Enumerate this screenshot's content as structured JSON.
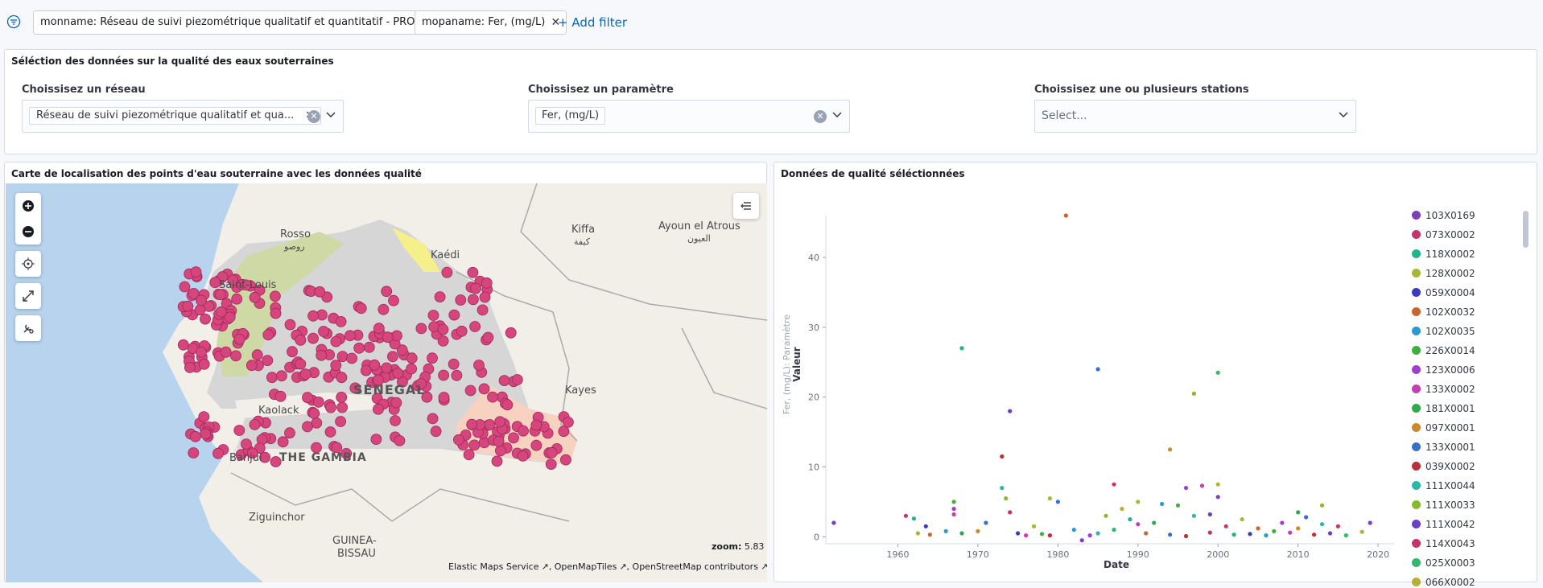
{
  "filters": [
    {
      "label": "monname: Réseau de suivi piezométrique qualitatif et quantitatif - PROGRES"
    },
    {
      "label": "mopaname: Fer, (mg/L)"
    }
  ],
  "add_filter_label": "+ Add filter",
  "controls": {
    "title": "Séléction des données sur la qualité des eaux souterraines",
    "network": {
      "label": "Choissisez un réseau",
      "selected": "Réseau de suivi piezométrique qualitatif et qua..."
    },
    "parameter": {
      "label": "Choissisez un paramètre",
      "selected": "Fer, (mg/L)"
    },
    "stations": {
      "label": "Choissisez une ou plusieurs stations",
      "placeholder": "Select..."
    }
  },
  "map": {
    "title": "Carte de localisation des points d'eau souterraine avec les données qualité",
    "zoom_label": "zoom:",
    "zoom_value": "5.83",
    "attribution": [
      "Elastic Maps Service",
      "OpenMapTiles",
      "OpenStreetMap contributors"
    ],
    "places": [
      {
        "name": "Rosso"
      },
      {
        "name": "روصو"
      },
      {
        "name": "Kaédi"
      },
      {
        "name": "Kiffa"
      },
      {
        "name": "كيفة"
      },
      {
        "name": "Ayoun el Atrous"
      },
      {
        "name": "العيون"
      },
      {
        "name": "Saint-Louis"
      },
      {
        "name": "SENEGAL"
      },
      {
        "name": "Kayes"
      },
      {
        "name": "Kaolack"
      },
      {
        "name": "Banjul"
      },
      {
        "name": "THE GAMBIA"
      },
      {
        "name": "Ziguinchor"
      },
      {
        "name": "GUINEA-"
      },
      {
        "name": "BISSAU"
      }
    ],
    "point_color": "#d6457c"
  },
  "chart_panel_title": "Données de qualité séléctionnées",
  "chart_data": {
    "type": "scatter",
    "xlabel": "Date",
    "ylabel": "Valeur",
    "ylabel_secondary": "Fer, (mg/L): Paramètre",
    "xlim": [
      1951,
      2022
    ],
    "ylim": [
      -1,
      46
    ],
    "x_ticks": [
      1960,
      1970,
      1980,
      1990,
      2000,
      2010,
      2020
    ],
    "y_ticks": [
      0,
      10,
      20,
      30,
      40
    ],
    "legend": [
      {
        "name": "103X0169",
        "color": "#7b3fb8"
      },
      {
        "name": "073X0002",
        "color": "#c9336b"
      },
      {
        "name": "118X0002",
        "color": "#1fb58a"
      },
      {
        "name": "128X0002",
        "color": "#a8b832"
      },
      {
        "name": "059X0004",
        "color": "#3a3abf"
      },
      {
        "name": "102X0032",
        "color": "#c8662c"
      },
      {
        "name": "102X0035",
        "color": "#2c9ad0"
      },
      {
        "name": "226X0014",
        "color": "#3fb03f"
      },
      {
        "name": "123X0006",
        "color": "#9c3fd0"
      },
      {
        "name": "133X0002",
        "color": "#c63fb0"
      },
      {
        "name": "181X0001",
        "color": "#2faa4a"
      },
      {
        "name": "097X0001",
        "color": "#c88a2c"
      },
      {
        "name": "133X0001",
        "color": "#3a6fc8"
      },
      {
        "name": "039X0002",
        "color": "#b8323a"
      },
      {
        "name": "111X0044",
        "color": "#2cb8a8"
      },
      {
        "name": "111X0033",
        "color": "#8ab82c"
      },
      {
        "name": "111X0042",
        "color": "#6a3fc8"
      },
      {
        "name": "114X0043",
        "color": "#c8326a"
      },
      {
        "name": "025X0003",
        "color": "#32b86a"
      },
      {
        "name": "066X0002",
        "color": "#b8b032"
      }
    ],
    "points": [
      {
        "x": 1952,
        "y": 2,
        "c": 0
      },
      {
        "x": 1961,
        "y": 3,
        "c": 1
      },
      {
        "x": 1962,
        "y": 2.6,
        "c": 2
      },
      {
        "x": 1962.5,
        "y": 0.5,
        "c": 3
      },
      {
        "x": 1963.5,
        "y": 1.5,
        "c": 4
      },
      {
        "x": 1964,
        "y": 0.3,
        "c": 5
      },
      {
        "x": 1966,
        "y": 0.8,
        "c": 6
      },
      {
        "x": 1967,
        "y": 5,
        "c": 7
      },
      {
        "x": 1967,
        "y": 4,
        "c": 8
      },
      {
        "x": 1967,
        "y": 3.2,
        "c": 9
      },
      {
        "x": 1968,
        "y": 27,
        "c": 2
      },
      {
        "x": 1968,
        "y": 0.5,
        "c": 10
      },
      {
        "x": 1970,
        "y": 0.8,
        "c": 11
      },
      {
        "x": 1971,
        "y": 2,
        "c": 12
      },
      {
        "x": 1973,
        "y": 11.5,
        "c": 13
      },
      {
        "x": 1973,
        "y": 7,
        "c": 14
      },
      {
        "x": 1973.5,
        "y": 5.5,
        "c": 15
      },
      {
        "x": 1974,
        "y": 18,
        "c": 16
      },
      {
        "x": 1974,
        "y": 3.5,
        "c": 17
      },
      {
        "x": 1975,
        "y": 0.5,
        "c": 4
      },
      {
        "x": 1976,
        "y": 0.2,
        "c": 9
      },
      {
        "x": 1977,
        "y": 1.5,
        "c": 3
      },
      {
        "x": 1978,
        "y": 0.4,
        "c": 7
      },
      {
        "x": 1979,
        "y": 0.2,
        "c": 13
      },
      {
        "x": 1979,
        "y": 5.5,
        "c": 3
      },
      {
        "x": 1980,
        "y": 5,
        "c": 12
      },
      {
        "x": 1981,
        "y": 46,
        "c": 5
      },
      {
        "x": 1982,
        "y": 1,
        "c": 6
      },
      {
        "x": 1983,
        "y": -0.5,
        "c": 0
      },
      {
        "x": 1984,
        "y": 0.2,
        "c": 8
      },
      {
        "x": 1985,
        "y": 24,
        "c": 12
      },
      {
        "x": 1985,
        "y": 0.5,
        "c": 14
      },
      {
        "x": 1986,
        "y": 3,
        "c": 15
      },
      {
        "x": 1987,
        "y": 7.5,
        "c": 1
      },
      {
        "x": 1987,
        "y": 1,
        "c": 18
      },
      {
        "x": 1988,
        "y": 4,
        "c": 19
      },
      {
        "x": 1989,
        "y": 2.5,
        "c": 2
      },
      {
        "x": 1990,
        "y": 5,
        "c": 3
      },
      {
        "x": 1990,
        "y": 1.8,
        "c": 9
      },
      {
        "x": 1991,
        "y": 0.5,
        "c": 5
      },
      {
        "x": 1992,
        "y": 2,
        "c": 10
      },
      {
        "x": 1993,
        "y": 4.7,
        "c": 6
      },
      {
        "x": 1994,
        "y": 12.5,
        "c": 11
      },
      {
        "x": 1994,
        "y": 0.3,
        "c": 12
      },
      {
        "x": 1995,
        "y": 4.5,
        "c": 7
      },
      {
        "x": 1996,
        "y": 7,
        "c": 8
      },
      {
        "x": 1996,
        "y": 0.1,
        "c": 13
      },
      {
        "x": 1997,
        "y": 20.5,
        "c": 15
      },
      {
        "x": 1997,
        "y": 3,
        "c": 14
      },
      {
        "x": 1998,
        "y": 7.3,
        "c": 9
      },
      {
        "x": 1999,
        "y": 3.2,
        "c": 16
      },
      {
        "x": 1999,
        "y": 0.6,
        "c": 17
      },
      {
        "x": 2000,
        "y": 23.5,
        "c": 18
      },
      {
        "x": 2000,
        "y": 7.5,
        "c": 19
      },
      {
        "x": 2000,
        "y": 5.7,
        "c": 0
      },
      {
        "x": 2001,
        "y": 1.5,
        "c": 1
      },
      {
        "x": 2002,
        "y": 0.3,
        "c": 2
      },
      {
        "x": 2003,
        "y": 2.5,
        "c": 3
      },
      {
        "x": 2004,
        "y": 0.4,
        "c": 4
      },
      {
        "x": 2005,
        "y": 1.2,
        "c": 5
      },
      {
        "x": 2006,
        "y": 0.2,
        "c": 6
      },
      {
        "x": 2007,
        "y": 0.8,
        "c": 7
      },
      {
        "x": 2008,
        "y": 2,
        "c": 8
      },
      {
        "x": 2009,
        "y": 0.6,
        "c": 9
      },
      {
        "x": 2010,
        "y": 3.5,
        "c": 10
      },
      {
        "x": 2010,
        "y": 1.2,
        "c": 11
      },
      {
        "x": 2011,
        "y": 2.8,
        "c": 12
      },
      {
        "x": 2012,
        "y": 0.3,
        "c": 13
      },
      {
        "x": 2013,
        "y": 1.8,
        "c": 14
      },
      {
        "x": 2013,
        "y": 4.5,
        "c": 15
      },
      {
        "x": 2014,
        "y": 0.5,
        "c": 16
      },
      {
        "x": 2015,
        "y": 1.5,
        "c": 17
      },
      {
        "x": 2016,
        "y": 0.2,
        "c": 18
      },
      {
        "x": 2018,
        "y": 0.7,
        "c": 19
      },
      {
        "x": 2019,
        "y": 2,
        "c": 0
      }
    ]
  }
}
